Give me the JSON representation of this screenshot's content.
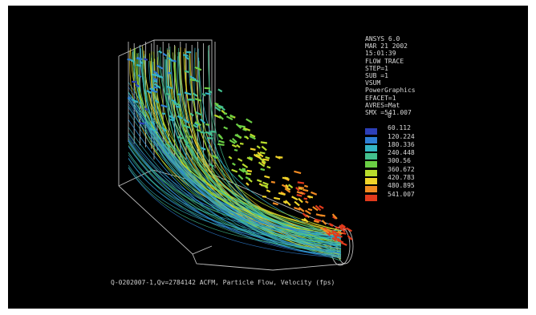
{
  "info": {
    "lines": [
      "ANSYS 6.0",
      "MAR 21 2002",
      "15:01:39",
      "FLOW TRACE",
      "STEP=1",
      "SUB =1",
      "VSUM",
      "PowerGraphics",
      "EFACET=1",
      "AVRES=Mat",
      "SMX =541.007"
    ]
  },
  "legend": {
    "zero_label": "0",
    "entries": [
      {
        "label": "60.112",
        "color": "#2d3fb8"
      },
      {
        "label": "120.224",
        "color": "#2e7fd6"
      },
      {
        "label": "180.336",
        "color": "#34b6c6"
      },
      {
        "label": "240.448",
        "color": "#43c08e"
      },
      {
        "label": "300.56",
        "color": "#6bcf44"
      },
      {
        "label": "360.672",
        "color": "#b8dc2c"
      },
      {
        "label": "420.783",
        "color": "#f0d42a"
      },
      {
        "label": "480.895",
        "color": "#f08a22"
      },
      {
        "label": "541.007",
        "color": "#e23a1c"
      }
    ]
  },
  "caption": "Q-0202007-1,Qv=2784142 ACFM, Particle Flow, Velocity (fps)"
}
